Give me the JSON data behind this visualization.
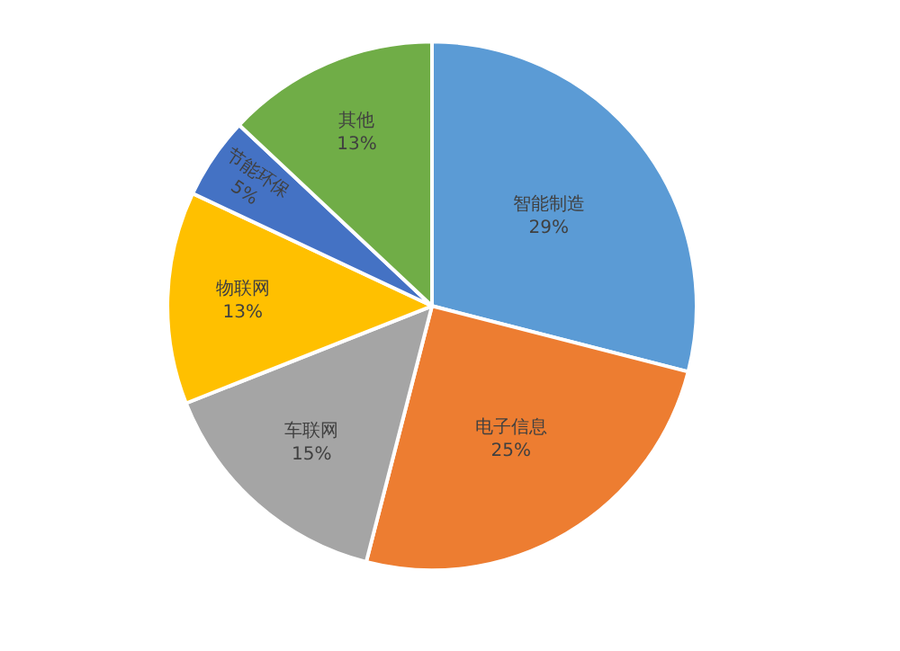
{
  "chart_data": {
    "type": "pie",
    "categories": [
      "智能制造",
      "电子信息",
      "车联网",
      "物联网",
      "节能环保",
      "其他"
    ],
    "values": [
      29,
      25,
      15,
      13,
      5,
      13
    ],
    "value_labels": [
      "29%",
      "25%",
      "15%",
      "13%",
      "5%",
      "13%"
    ],
    "colors": [
      "#5b9bd5",
      "#ed7d31",
      "#a5a5a5",
      "#ffc000",
      "#4472c4",
      "#70ad47"
    ],
    "legend": false
  }
}
